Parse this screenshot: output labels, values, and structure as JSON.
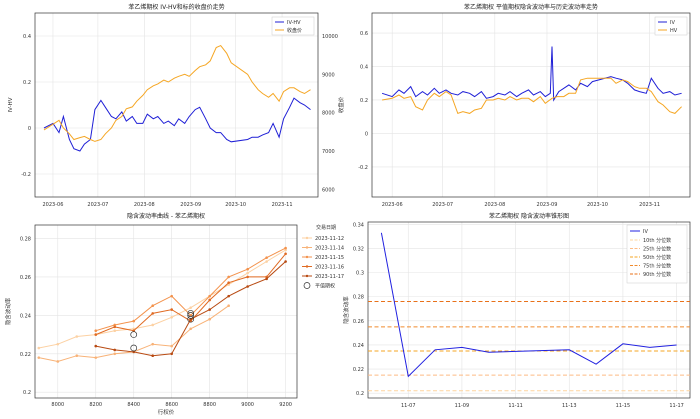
{
  "chart_data": [
    {
      "type": "line",
      "title": "苯乙烯期权 IV-HV和标的收盘价走势",
      "ylabel_left": "IV-HV",
      "ylabel_right": "收盘价",
      "ylim_left": [
        -0.3,
        0.5
      ],
      "ylim_right": [
        5800,
        10600
      ],
      "xlim": [
        "2023-05-20",
        "2023-11-25"
      ],
      "x_ticks": [
        "2023-06",
        "2023-07",
        "2023-08",
        "2023-09",
        "2023-10",
        "2023-11"
      ],
      "x_tick_dates": [
        "2023-06-01",
        "2023-07-01",
        "2023-08-01",
        "2023-09-01",
        "2023-10-01",
        "2023-11-01"
      ],
      "y_ticks_left": [
        0.4,
        0.2,
        0.0,
        -0.2
      ],
      "y_ticks_right": [
        10000,
        9000,
        8000,
        7000,
        6000
      ],
      "legend": "top-right",
      "grid": true,
      "series": [
        {
          "name": "IV-HV",
          "axis": "left",
          "color": "#1f1fd6",
          "x": [
            "2023-05-26",
            "2023-06-01",
            "2023-06-05",
            "2023-06-08",
            "2023-06-12",
            "2023-06-15",
            "2023-06-19",
            "2023-06-22",
            "2023-06-26",
            "2023-06-29",
            "2023-07-03",
            "2023-07-06",
            "2023-07-10",
            "2023-07-13",
            "2023-07-17",
            "2023-07-20",
            "2023-07-24",
            "2023-07-27",
            "2023-07-31",
            "2023-08-03",
            "2023-08-07",
            "2023-08-10",
            "2023-08-14",
            "2023-08-17",
            "2023-08-21",
            "2023-08-24",
            "2023-08-28",
            "2023-08-31",
            "2023-09-04",
            "2023-09-07",
            "2023-09-11",
            "2023-09-14",
            "2023-09-18",
            "2023-09-21",
            "2023-09-25",
            "2023-09-28",
            "2023-10-09",
            "2023-10-12",
            "2023-10-16",
            "2023-10-19",
            "2023-10-23",
            "2023-10-26",
            "2023-10-30",
            "2023-11-02",
            "2023-11-06",
            "2023-11-09",
            "2023-11-13",
            "2023-11-16",
            "2023-11-20"
          ],
          "y": [
            0.0,
            0.02,
            -0.02,
            0.05,
            -0.05,
            -0.09,
            -0.1,
            -0.07,
            -0.05,
            0.08,
            0.12,
            0.09,
            0.05,
            0.04,
            0.07,
            0.03,
            0.05,
            0.02,
            0.02,
            0.06,
            0.04,
            0.05,
            0.02,
            0.03,
            0.01,
            0.04,
            0.02,
            0.05,
            0.08,
            0.09,
            0.04,
            0.0,
            -0.02,
            -0.02,
            -0.05,
            -0.06,
            -0.05,
            -0.04,
            -0.04,
            -0.03,
            -0.02,
            0.02,
            -0.04,
            0.04,
            0.09,
            0.13,
            0.11,
            0.1,
            0.08
          ]
        },
        {
          "name": "收盘价",
          "axis": "right",
          "color": "#f5a623",
          "x": [
            "2023-05-26",
            "2023-06-01",
            "2023-06-05",
            "2023-06-08",
            "2023-06-12",
            "2023-06-15",
            "2023-06-19",
            "2023-06-22",
            "2023-06-26",
            "2023-06-29",
            "2023-07-03",
            "2023-07-06",
            "2023-07-10",
            "2023-07-13",
            "2023-07-17",
            "2023-07-20",
            "2023-07-24",
            "2023-07-27",
            "2023-07-31",
            "2023-08-03",
            "2023-08-07",
            "2023-08-10",
            "2023-08-14",
            "2023-08-17",
            "2023-08-21",
            "2023-08-24",
            "2023-08-28",
            "2023-08-31",
            "2023-09-04",
            "2023-09-07",
            "2023-09-11",
            "2023-09-14",
            "2023-09-18",
            "2023-09-21",
            "2023-09-25",
            "2023-09-28",
            "2023-10-09",
            "2023-10-12",
            "2023-10-16",
            "2023-10-19",
            "2023-10-23",
            "2023-10-26",
            "2023-10-30",
            "2023-11-02",
            "2023-11-06",
            "2023-11-09",
            "2023-11-13",
            "2023-11-16",
            "2023-11-20"
          ],
          "y": [
            7550,
            7700,
            7800,
            7600,
            7450,
            7300,
            7350,
            7380,
            7300,
            7250,
            7300,
            7450,
            7600,
            7800,
            7900,
            8100,
            8150,
            8300,
            8450,
            8600,
            8700,
            8750,
            8850,
            8800,
            8900,
            8950,
            9000,
            8950,
            9100,
            9200,
            9250,
            9350,
            9700,
            9750,
            9550,
            9300,
            9000,
            8800,
            8600,
            8500,
            8400,
            8500,
            8300,
            8550,
            8650,
            8650,
            8550,
            8500,
            8600
          ]
        }
      ]
    },
    {
      "type": "line",
      "title": "苯乙烯期权 平值期权隐含波动率与历史波动率走势",
      "ylim": [
        -0.38,
        0.72
      ],
      "xlim": [
        "2023-05-20",
        "2023-11-25"
      ],
      "x_ticks": [
        "2023-06",
        "2023-07",
        "2023-08",
        "2023-09",
        "2023-10",
        "2023-11"
      ],
      "x_tick_dates": [
        "2023-06-01",
        "2023-07-01",
        "2023-08-01",
        "2023-09-01",
        "2023-10-01",
        "2023-11-01"
      ],
      "y_ticks": [
        0.6,
        0.4,
        0.2,
        0.0,
        -0.2
      ],
      "legend": "top-right",
      "grid": true,
      "series": [
        {
          "name": "IV",
          "color": "#1f1fd6",
          "x": [
            "2023-05-26",
            "2023-06-01",
            "2023-06-05",
            "2023-06-08",
            "2023-06-12",
            "2023-06-15",
            "2023-06-19",
            "2023-06-22",
            "2023-06-26",
            "2023-06-29",
            "2023-07-03",
            "2023-07-06",
            "2023-07-10",
            "2023-07-13",
            "2023-07-17",
            "2023-07-20",
            "2023-07-24",
            "2023-07-27",
            "2023-07-31",
            "2023-08-03",
            "2023-08-07",
            "2023-08-10",
            "2023-08-14",
            "2023-08-17",
            "2023-08-21",
            "2023-08-24",
            "2023-08-28",
            "2023-08-31",
            "2023-09-03",
            "2023-09-04",
            "2023-09-05",
            "2023-09-08",
            "2023-09-11",
            "2023-09-14",
            "2023-09-18",
            "2023-09-21",
            "2023-09-25",
            "2023-09-28",
            "2023-10-09",
            "2023-10-12",
            "2023-10-16",
            "2023-10-19",
            "2023-10-23",
            "2023-10-26",
            "2023-10-30",
            "2023-11-02",
            "2023-11-06",
            "2023-11-09",
            "2023-11-13",
            "2023-11-16",
            "2023-11-20"
          ],
          "y": [
            0.24,
            0.22,
            0.26,
            0.24,
            0.28,
            0.22,
            0.25,
            0.23,
            0.27,
            0.24,
            0.26,
            0.24,
            0.23,
            0.25,
            0.24,
            0.22,
            0.25,
            0.21,
            0.22,
            0.24,
            0.23,
            0.25,
            0.22,
            0.24,
            0.26,
            0.23,
            0.25,
            0.22,
            0.24,
            0.52,
            0.2,
            0.25,
            0.27,
            0.29,
            0.26,
            0.3,
            0.28,
            0.31,
            0.34,
            0.33,
            0.32,
            0.3,
            0.26,
            0.25,
            0.24,
            0.33,
            0.27,
            0.24,
            0.25,
            0.23,
            0.24
          ]
        },
        {
          "name": "HV",
          "color": "#f5a623",
          "x": [
            "2023-05-26",
            "2023-06-01",
            "2023-06-05",
            "2023-06-08",
            "2023-06-12",
            "2023-06-15",
            "2023-06-19",
            "2023-06-22",
            "2023-06-26",
            "2023-06-29",
            "2023-07-03",
            "2023-07-06",
            "2023-07-10",
            "2023-07-13",
            "2023-07-17",
            "2023-07-20",
            "2023-07-24",
            "2023-07-27",
            "2023-07-31",
            "2023-08-03",
            "2023-08-07",
            "2023-08-10",
            "2023-08-14",
            "2023-08-17",
            "2023-08-21",
            "2023-08-24",
            "2023-08-28",
            "2023-08-31",
            "2023-09-04",
            "2023-09-07",
            "2023-09-11",
            "2023-09-14",
            "2023-09-18",
            "2023-09-21",
            "2023-09-25",
            "2023-09-28",
            "2023-10-09",
            "2023-10-12",
            "2023-10-16",
            "2023-10-19",
            "2023-10-23",
            "2023-10-26",
            "2023-10-30",
            "2023-11-02",
            "2023-11-06",
            "2023-11-09",
            "2023-11-13",
            "2023-11-16",
            "2023-11-20"
          ],
          "y": [
            0.2,
            0.21,
            0.23,
            0.21,
            0.22,
            0.16,
            0.14,
            0.2,
            0.24,
            0.22,
            0.25,
            0.23,
            0.12,
            0.13,
            0.12,
            0.14,
            0.15,
            0.2,
            0.2,
            0.21,
            0.2,
            0.22,
            0.2,
            0.21,
            0.21,
            0.19,
            0.22,
            0.18,
            0.21,
            0.22,
            0.22,
            0.24,
            0.24,
            0.32,
            0.33,
            0.33,
            0.33,
            0.3,
            0.32,
            0.31,
            0.28,
            0.27,
            0.27,
            0.25,
            0.19,
            0.17,
            0.13,
            0.12,
            0.16
          ]
        }
      ]
    },
    {
      "type": "line",
      "title": "隐含波动率曲线 - 苯乙烯期权",
      "xlabel": "行权价",
      "ylabel": "隐含波动率",
      "xlim": [
        7880,
        9260
      ],
      "ylim": [
        0.197,
        0.287
      ],
      "x_ticks": [
        8000,
        8200,
        8400,
        8600,
        8800,
        9000,
        9200
      ],
      "y_ticks": [
        0.2,
        0.22,
        0.24,
        0.26,
        0.28
      ],
      "legend": "top-right",
      "legend_title": "交易日期",
      "grid": true,
      "series": [
        {
          "name": "2023-11-12",
          "color": "#fcd1a3",
          "x": [
            7900,
            8000,
            8100,
            8200,
            8300,
            8400,
            8500,
            8600,
            8700,
            8800,
            8900,
            9000,
            9100,
            9200
          ],
          "y": [
            0.223,
            0.225,
            0.229,
            0.23,
            0.232,
            0.233,
            0.235,
            0.239,
            0.244,
            0.25,
            0.256,
            0.262,
            0.268,
            0.274
          ]
        },
        {
          "name": "2023-11-14",
          "color": "#f8b277",
          "x": [
            7900,
            8000,
            8100,
            8200,
            8300,
            8400,
            8500,
            8600,
            8700,
            8800,
            8900
          ],
          "y": [
            0.218,
            0.216,
            0.219,
            0.218,
            0.22,
            0.221,
            0.225,
            0.224,
            0.233,
            0.238,
            0.245
          ]
        },
        {
          "name": "2023-11-15",
          "color": "#f3924c",
          "x": [
            8200,
            8300,
            8400,
            8500,
            8600,
            8700,
            8800,
            8900,
            9000,
            9100,
            9200
          ],
          "y": [
            0.232,
            0.235,
            0.237,
            0.245,
            0.25,
            0.24,
            0.25,
            0.26,
            0.264,
            0.27,
            0.275
          ]
        },
        {
          "name": "2023-11-16",
          "color": "#e06a22",
          "x": [
            8200,
            8300,
            8400,
            8500,
            8600,
            8700,
            8800,
            8900,
            9000,
            9100,
            9200
          ],
          "y": [
            0.23,
            0.234,
            0.232,
            0.241,
            0.243,
            0.237,
            0.248,
            0.257,
            0.26,
            0.26,
            0.272
          ]
        },
        {
          "name": "2023-11-17",
          "color": "#b84a12",
          "x": [
            8200,
            8300,
            8400,
            8500,
            8600,
            8700,
            8800,
            8900,
            9000,
            9100,
            9200
          ],
          "y": [
            0.224,
            0.222,
            0.221,
            0.219,
            0.22,
            0.238,
            0.243,
            0.25,
            0.255,
            0.259,
            0.268
          ]
        }
      ],
      "atm_points": {
        "name": "平值期权",
        "x": [
          8400,
          8400,
          8700,
          8700,
          8700
        ],
        "y": [
          0.23,
          0.223,
          0.238,
          0.24,
          0.241
        ]
      }
    },
    {
      "type": "line",
      "title": "苯乙烯期权 隐含波动率锥形图",
      "ylabel": "隐含波动率",
      "xlim": [
        "2023-11-05T12:00",
        "2023-11-17T12:00"
      ],
      "ylim": [
        0.196,
        0.342
      ],
      "x_ticks": [
        "11-07",
        "11-09",
        "11-11",
        "11-13",
        "11-15",
        "11-17"
      ],
      "x_tick_dates": [
        "2023-11-07",
        "2023-11-09",
        "2023-11-11",
        "2023-11-13",
        "2023-11-15",
        "2023-11-17"
      ],
      "y_ticks": [
        0.2,
        0.22,
        0.24,
        0.26,
        0.28,
        0.3,
        0.32,
        0.34
      ],
      "legend": "top-right",
      "grid": true,
      "series": [
        {
          "name": "IV",
          "color": "#2020e0",
          "x": [
            "2023-11-06",
            "2023-11-07",
            "2023-11-08",
            "2023-11-09",
            "2023-11-10",
            "2023-11-13",
            "2023-11-14",
            "2023-11-15",
            "2023-11-16",
            "2023-11-17"
          ],
          "y": [
            0.333,
            0.214,
            0.236,
            0.238,
            0.234,
            0.236,
            0.224,
            0.241,
            0.238,
            0.24
          ]
        }
      ],
      "percentiles": [
        {
          "name": "10th 分位数",
          "value": 0.202,
          "color": "#fdd49e"
        },
        {
          "name": "25th 分位数",
          "value": 0.215,
          "color": "#fdbb84"
        },
        {
          "name": "50th 分位数",
          "value": 0.235,
          "color": "#f5a623"
        },
        {
          "name": "75th 分位数",
          "value": 0.255,
          "color": "#f08a2c"
        },
        {
          "name": "90th 分位数",
          "value": 0.276,
          "color": "#e8711a"
        }
      ]
    }
  ]
}
